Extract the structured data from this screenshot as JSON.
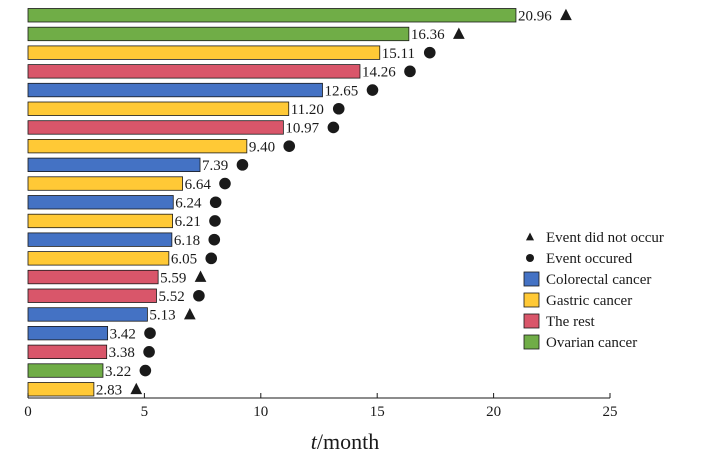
{
  "chart_data": {
    "type": "bar",
    "orientation": "horizontal",
    "xlabel_italic": "t",
    "xlabel_rest": "/month",
    "xlim": [
      0,
      25
    ],
    "xticks": [
      0,
      5,
      10,
      15,
      20,
      25
    ],
    "grid": false,
    "legend_position": "right",
    "bars": [
      {
        "value": 20.96,
        "label": "20.96",
        "group": "ovarian",
        "event": "not_occurred"
      },
      {
        "value": 16.36,
        "label": "16.36",
        "group": "ovarian",
        "event": "not_occurred"
      },
      {
        "value": 15.11,
        "label": "15.11",
        "group": "gastric",
        "event": "occurred"
      },
      {
        "value": 14.26,
        "label": "14.26",
        "group": "rest",
        "event": "occurred"
      },
      {
        "value": 12.65,
        "label": "12.65",
        "group": "colorectal",
        "event": "occurred"
      },
      {
        "value": 11.2,
        "label": "11.20",
        "group": "gastric",
        "event": "occurred"
      },
      {
        "value": 10.97,
        "label": "10.97",
        "group": "rest",
        "event": "occurred"
      },
      {
        "value": 9.4,
        "label": "9.40",
        "group": "gastric",
        "event": "occurred"
      },
      {
        "value": 7.39,
        "label": "7.39",
        "group": "colorectal",
        "event": "occurred"
      },
      {
        "value": 6.64,
        "label": "6.64",
        "group": "gastric",
        "event": "occurred"
      },
      {
        "value": 6.24,
        "label": "6.24",
        "group": "colorectal",
        "event": "occurred"
      },
      {
        "value": 6.21,
        "label": "6.21",
        "group": "gastric",
        "event": "occurred"
      },
      {
        "value": 6.18,
        "label": "6.18",
        "group": "colorectal",
        "event": "occurred"
      },
      {
        "value": 6.05,
        "label": "6.05",
        "group": "gastric",
        "event": "occurred"
      },
      {
        "value": 5.59,
        "label": "5.59",
        "group": "rest",
        "event": "not_occurred"
      },
      {
        "value": 5.52,
        "label": "5.52",
        "group": "rest",
        "event": "occurred"
      },
      {
        "value": 5.13,
        "label": "5.13",
        "group": "colorectal",
        "event": "not_occurred"
      },
      {
        "value": 3.42,
        "label": "3.42",
        "group": "colorectal",
        "event": "occurred"
      },
      {
        "value": 3.38,
        "label": "3.38",
        "group": "rest",
        "event": "occurred"
      },
      {
        "value": 3.22,
        "label": "3.22",
        "group": "ovarian",
        "event": "occurred"
      },
      {
        "value": 2.83,
        "label": "2.83",
        "group": "gastric",
        "event": "not_occurred"
      }
    ],
    "groups": {
      "colorectal": {
        "name": "Colorectal cancer",
        "color": "#4472C4"
      },
      "gastric": {
        "name": "Gastric cancer",
        "color": "#FFC936"
      },
      "rest": {
        "name": "The rest",
        "color": "#D9566A"
      },
      "ovarian": {
        "name": "Ovarian cancer",
        "color": "#70AD47"
      }
    },
    "legend": {
      "event_not_occurred": "Event did not occur",
      "event_occurred": "Event occured",
      "groups_order": [
        "colorectal",
        "gastric",
        "rest",
        "ovarian"
      ]
    }
  }
}
